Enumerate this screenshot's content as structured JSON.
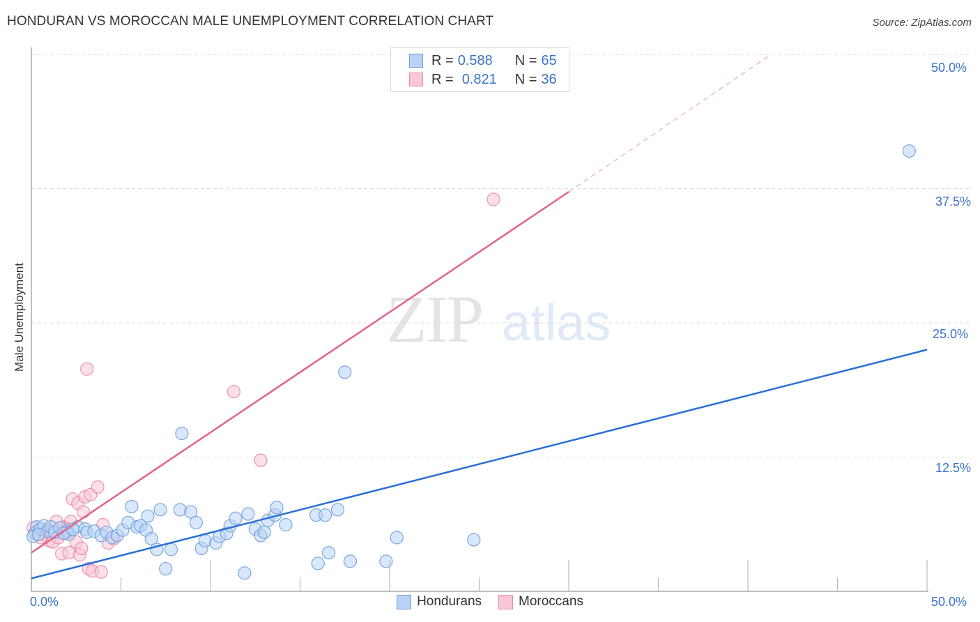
{
  "header": {
    "title": "HONDURAN VS MOROCCAN MALE UNEMPLOYMENT CORRELATION CHART",
    "source": "Source: ZipAtlas.com"
  },
  "watermark": {
    "zip": "ZIP",
    "atlas": "atlas"
  },
  "legend_top": {
    "rows": [
      {
        "r_label": "R = ",
        "r_value": "0.588",
        "n_label": "N = ",
        "n_value": "65",
        "color": "#b8d3f5",
        "border": "#6f9edb"
      },
      {
        "r_label": "R = ",
        "r_value": "0.821",
        "n_label": "N = ",
        "n_value": "36",
        "color": "#f9c6d5",
        "border": "#e58aa6"
      }
    ]
  },
  "legend_bottom": {
    "items": [
      {
        "label": "Hondurans",
        "color": "#b8d3f5",
        "border": "#6f9edb"
      },
      {
        "label": "Moroccans",
        "color": "#f9c6d5",
        "border": "#e58aa6"
      }
    ]
  },
  "axes": {
    "ylabel": "Male Unemployment",
    "x_left_label": "0.0%",
    "x_right_label": "50.0%",
    "y_ticks": [
      "50.0%",
      "37.5%",
      "25.0%",
      "12.5%"
    ]
  },
  "chart_data": {
    "type": "scatter",
    "title": "HONDURAN VS MOROCCAN MALE UNEMPLOYMENT CORRELATION CHART",
    "xlabel": "",
    "ylabel": "Male Unemployment",
    "xlim": [
      0,
      50
    ],
    "ylim": [
      0,
      50
    ],
    "x_ticks": [
      "0.0%",
      "50.0%"
    ],
    "y_ticks": [
      "12.5%",
      "25.0%",
      "37.5%",
      "50.0%"
    ],
    "grid": true,
    "legend_position": "bottom",
    "series": [
      {
        "name": "Hondurans",
        "color": "#6f9edb",
        "fill": "#b8d3f5",
        "R": 0.588,
        "N": 65,
        "trendline": {
          "x": [
            0,
            50
          ],
          "y": [
            1.2,
            22.5
          ]
        },
        "points": [
          [
            0.2,
            5.4
          ],
          [
            0.3,
            6.0
          ],
          [
            0.5,
            5.8
          ],
          [
            0.7,
            6.1
          ],
          [
            0.9,
            5.6
          ],
          [
            1.1,
            6.0
          ],
          [
            1.3,
            5.5
          ],
          [
            1.6,
            5.9
          ],
          [
            2.0,
            5.6
          ],
          [
            2.1,
            5.3
          ],
          [
            2.6,
            6.0
          ],
          [
            3.0,
            5.8
          ],
          [
            3.1,
            5.5
          ],
          [
            3.5,
            5.6
          ],
          [
            3.9,
            5.2
          ],
          [
            4.2,
            5.5
          ],
          [
            4.5,
            5.0
          ],
          [
            4.8,
            5.2
          ],
          [
            5.1,
            5.7
          ],
          [
            5.4,
            6.4
          ],
          [
            5.6,
            7.9
          ],
          [
            5.9,
            6.0
          ],
          [
            6.1,
            6.1
          ],
          [
            6.4,
            5.7
          ],
          [
            6.5,
            7.0
          ],
          [
            6.7,
            4.9
          ],
          [
            7.0,
            3.9
          ],
          [
            7.2,
            7.6
          ],
          [
            7.5,
            2.1
          ],
          [
            7.8,
            3.9
          ],
          [
            8.3,
            7.6
          ],
          [
            8.4,
            14.7
          ],
          [
            8.9,
            7.4
          ],
          [
            9.2,
            6.4
          ],
          [
            9.5,
            4.0
          ],
          [
            9.7,
            4.7
          ],
          [
            10.3,
            4.5
          ],
          [
            10.5,
            5.1
          ],
          [
            10.9,
            5.4
          ],
          [
            11.1,
            6.1
          ],
          [
            11.4,
            6.8
          ],
          [
            11.9,
            1.7
          ],
          [
            12.1,
            7.2
          ],
          [
            12.5,
            5.8
          ],
          [
            12.8,
            5.2
          ],
          [
            13.0,
            5.5
          ],
          [
            13.2,
            6.6
          ],
          [
            13.6,
            7.1
          ],
          [
            13.7,
            7.8
          ],
          [
            14.2,
            6.2
          ],
          [
            15.9,
            7.1
          ],
          [
            16.0,
            2.6
          ],
          [
            16.4,
            7.1
          ],
          [
            16.6,
            3.6
          ],
          [
            17.1,
            7.6
          ],
          [
            17.5,
            20.4
          ],
          [
            17.8,
            2.8
          ],
          [
            19.8,
            2.8
          ],
          [
            20.4,
            5.0
          ],
          [
            24.7,
            4.8
          ],
          [
            49.0,
            41.0
          ],
          [
            0.1,
            5.1
          ],
          [
            0.4,
            5.3
          ],
          [
            1.8,
            5.4
          ],
          [
            2.3,
            5.8
          ]
        ]
      },
      {
        "name": "Moroccans",
        "color": "#e58aa6",
        "fill": "#f9c6d5",
        "R": 0.821,
        "N": 36,
        "trendline": {
          "x": [
            0,
            30.0
          ],
          "y": [
            3.6,
            37.2
          ],
          "dashed_extension": {
            "x": [
              30.0,
              41.3
            ],
            "y": [
              37.2,
              50.0
            ]
          }
        },
        "points": [
          [
            0.1,
            5.9
          ],
          [
            0.3,
            5.6
          ],
          [
            0.4,
            5.4
          ],
          [
            0.6,
            5.8
          ],
          [
            0.8,
            5.3
          ],
          [
            1.0,
            4.7
          ],
          [
            1.2,
            4.6
          ],
          [
            1.4,
            6.5
          ],
          [
            1.5,
            5.0
          ],
          [
            1.7,
            3.5
          ],
          [
            1.8,
            6.0
          ],
          [
            1.9,
            5.4
          ],
          [
            2.1,
            3.6
          ],
          [
            2.2,
            6.5
          ],
          [
            2.3,
            8.6
          ],
          [
            2.5,
            4.6
          ],
          [
            2.6,
            8.2
          ],
          [
            2.7,
            3.4
          ],
          [
            2.8,
            4.0
          ],
          [
            2.9,
            7.4
          ],
          [
            3.0,
            8.8
          ],
          [
            3.1,
            20.7
          ],
          [
            3.2,
            2.1
          ],
          [
            3.3,
            9.0
          ],
          [
            3.4,
            1.9
          ],
          [
            3.7,
            9.7
          ],
          [
            3.9,
            1.8
          ],
          [
            4.0,
            6.2
          ],
          [
            4.3,
            4.5
          ],
          [
            4.6,
            4.9
          ],
          [
            11.3,
            18.6
          ],
          [
            12.8,
            12.2
          ],
          [
            25.8,
            36.5
          ],
          [
            0.5,
            5.0
          ],
          [
            1.1,
            5.6
          ],
          [
            2.0,
            5.8
          ]
        ]
      }
    ]
  }
}
